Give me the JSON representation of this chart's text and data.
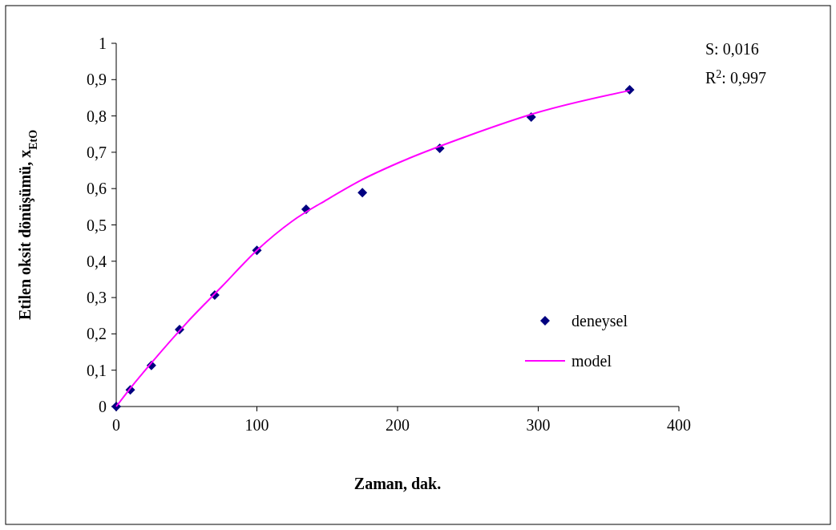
{
  "chart_data": {
    "type": "scatter",
    "xlabel": "Zaman, dak.",
    "ylabel": "Etilen oksit dönüşümü, x$_{EtO}$",
    "xlim": [
      0,
      400
    ],
    "xticks": [
      0,
      100,
      200,
      300,
      400
    ],
    "ylim": [
      0,
      1
    ],
    "yticks": [
      0,
      {
        "value": 0.1,
        "label": "0,1"
      },
      {
        "value": 0.2,
        "label": "0,2"
      },
      {
        "value": 0.3,
        "label": "0,3"
      },
      {
        "value": 0.4,
        "label": "0,4"
      },
      {
        "value": 0.5,
        "label": "0,5"
      },
      {
        "value": 0.6,
        "label": "0,6"
      },
      {
        "value": 0.7,
        "label": "0,7"
      },
      {
        "value": 0.8,
        "label": "0,8"
      },
      {
        "value": 0.9,
        "label": "0,9"
      },
      1
    ],
    "grid": false,
    "legend": "right",
    "annotations": [
      "S: 0,016",
      "R$^{2}$: 0,997"
    ],
    "series": [
      {
        "name": "deneysel",
        "marker": "diamond",
        "color": "#000080",
        "x": [
          0,
          10,
          25,
          45,
          70,
          100,
          135,
          175,
          230,
          295,
          365
        ],
        "values": [
          0,
          0.046,
          0.113,
          0.212,
          0.307,
          0.43,
          0.543,
          0.589,
          0.711,
          0.797,
          0.872
        ]
      },
      {
        "name": "model",
        "type": "line",
        "marker": "none",
        "line_style": "solid",
        "color": "#ff00ff",
        "x": [
          0,
          10,
          25,
          50,
          75,
          100,
          125,
          150,
          175,
          200,
          250,
          300,
          365
        ],
        "values": [
          0,
          0.05,
          0.12,
          0.23,
          0.33,
          0.43,
          0.51,
          0.57,
          0.625,
          0.67,
          0.745,
          0.81,
          0.87
        ]
      }
    ]
  }
}
